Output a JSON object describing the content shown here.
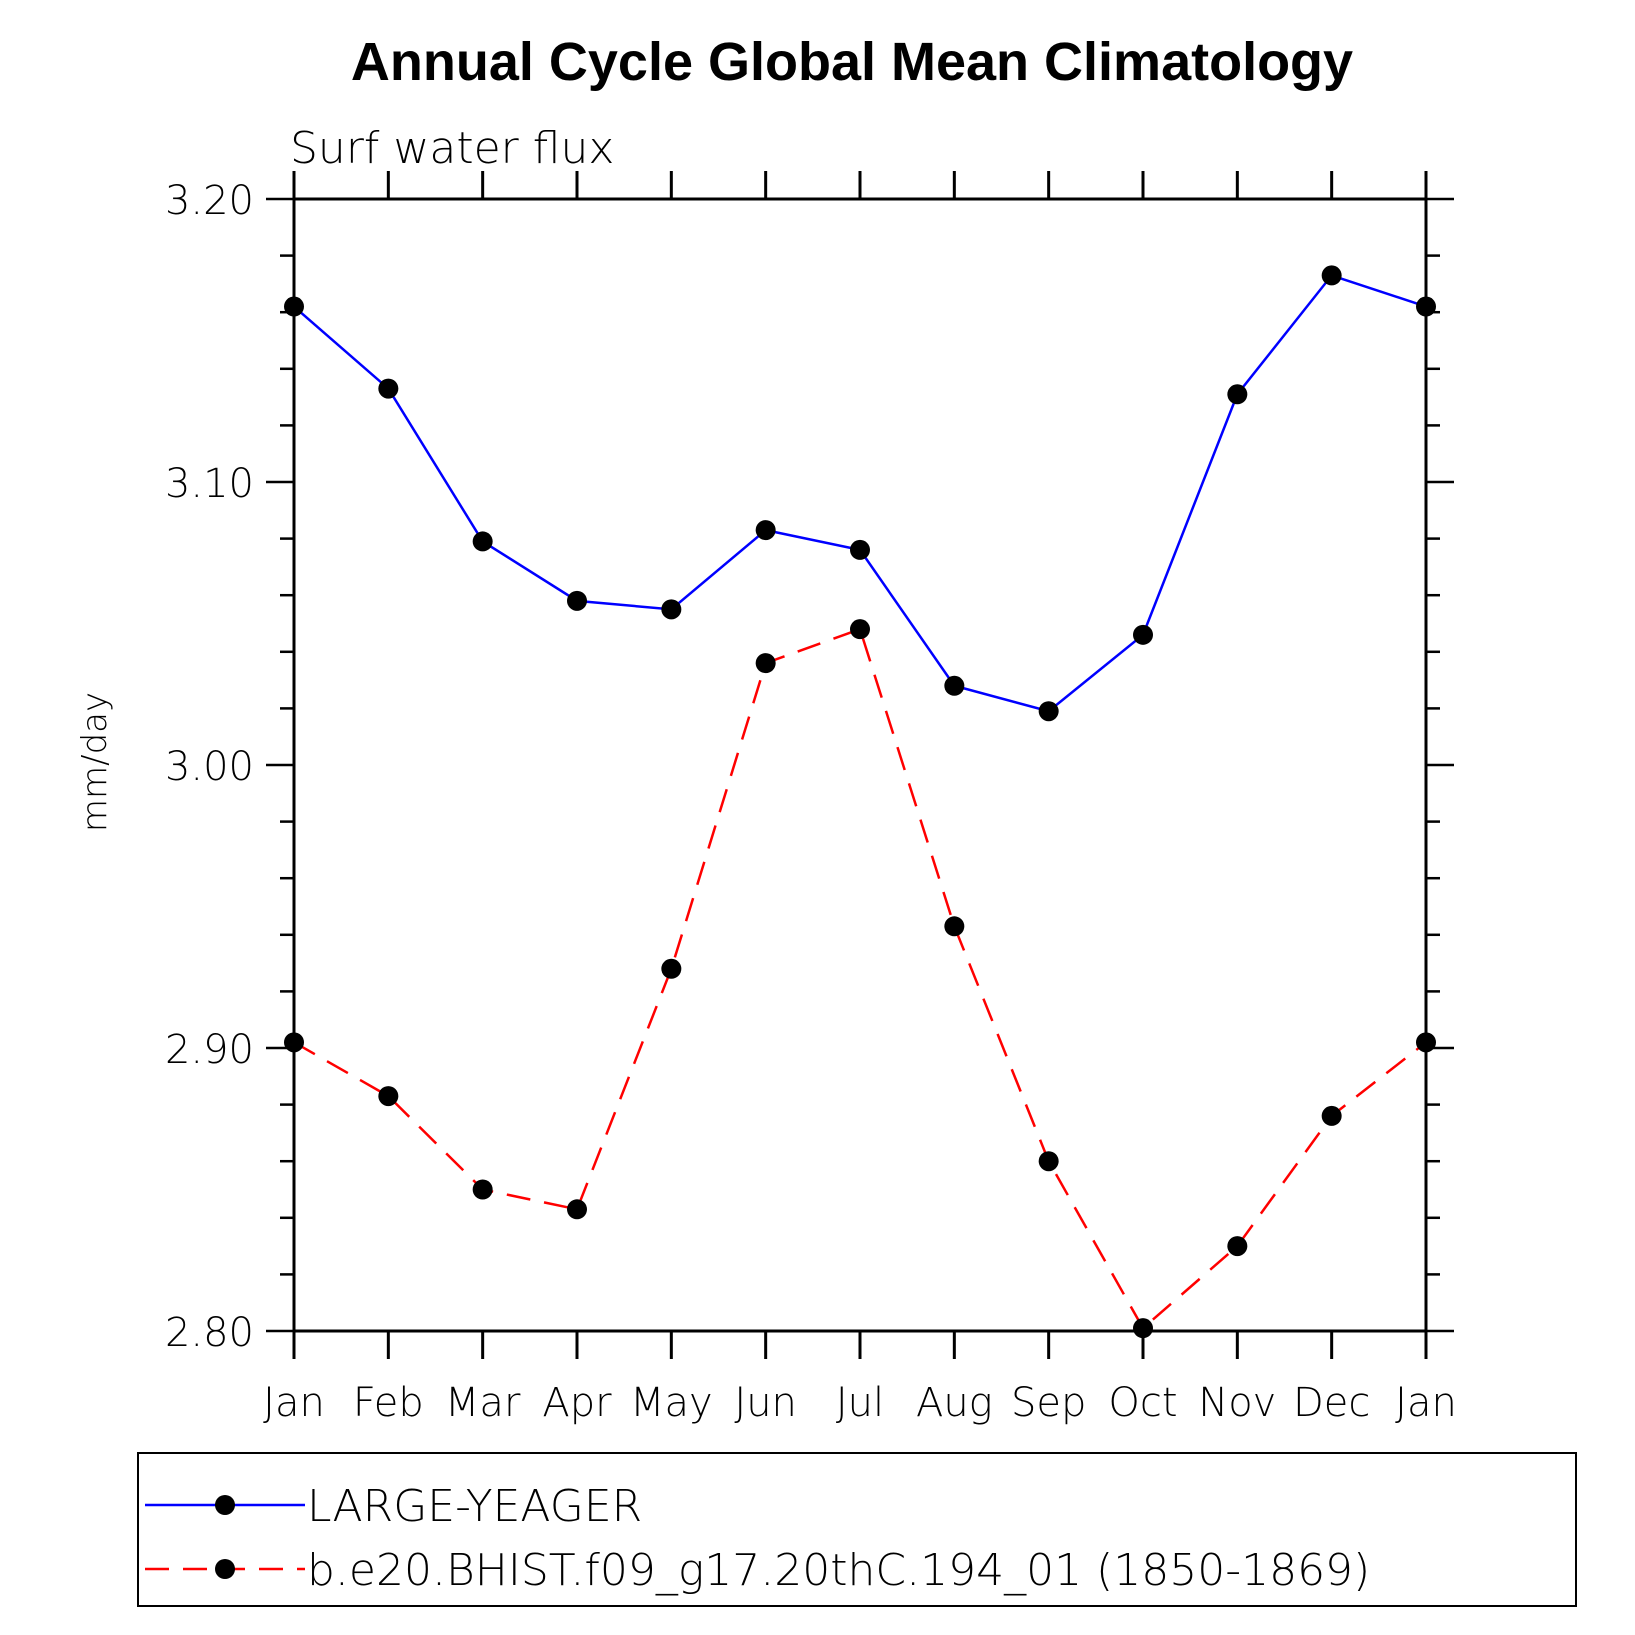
{
  "chart_data": {
    "type": "line",
    "title": "Annual Cycle Global Mean Climatology",
    "subtitle": "Surf  water  flux",
    "xlabel": "",
    "ylabel": "mm/day",
    "categories": [
      "Jan",
      "Feb",
      "Mar",
      "Apr",
      "May",
      "Jun",
      "Jul",
      "Aug",
      "Sep",
      "Oct",
      "Nov",
      "Dec",
      "Jan"
    ],
    "ylim": [
      2.8,
      3.2
    ],
    "yticks": [
      "2.80",
      "2.90",
      "3.00",
      "3.10",
      "3.20"
    ],
    "grid": false,
    "legend_position": "bottom",
    "series": [
      {
        "name": "LARGE-YEAGER",
        "color": "#0000ff",
        "dash": "solid",
        "marker": "filled-circle",
        "values": [
          3.162,
          3.133,
          3.079,
          3.058,
          3.055,
          3.083,
          3.076,
          3.028,
          3.019,
          3.046,
          3.131,
          3.173,
          3.162
        ]
      },
      {
        "name": "b.e20.BHIST.f09_g17.20thC.194_01 (1850-1869)",
        "color": "#ff0000",
        "dash": "dashed",
        "marker": "filled-circle",
        "values": [
          2.902,
          2.883,
          2.85,
          2.843,
          2.928,
          3.036,
          3.048,
          2.943,
          2.86,
          2.801,
          2.83,
          2.876,
          2.902
        ]
      }
    ]
  }
}
